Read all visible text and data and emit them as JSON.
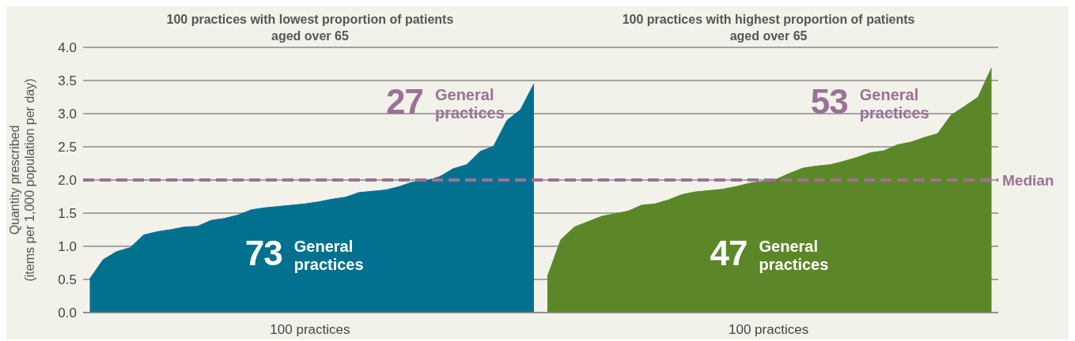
{
  "chart_data": {
    "type": "area",
    "ylabel": "Quantity prescribed (items per 1,000 population per day)",
    "categories": [
      null,
      null,
      null,
      null,
      null,
      null,
      null,
      null,
      null,
      null,
      null,
      null,
      null,
      null,
      null,
      null,
      null,
      null,
      null,
      null,
      null,
      null,
      null,
      null,
      null,
      null,
      null,
      null,
      null,
      null,
      null,
      null,
      null,
      null,
      null,
      null,
      null,
      null,
      null,
      null,
      null,
      null,
      null,
      null,
      null,
      null,
      null,
      null,
      null,
      null,
      null,
      null,
      null,
      null,
      null,
      null,
      null,
      null,
      null,
      null,
      null,
      null,
      null,
      null,
      null,
      null,
      null,
      null
    ],
    "series": [
      {
        "color": "#027190",
        "values": [
          0.51,
          0.8,
          0.92,
          0.98,
          1.17,
          1.22,
          1.25,
          1.29,
          1.3,
          1.39,
          1.42,
          1.47,
          1.55,
          1.58,
          1.6,
          1.62,
          1.64,
          1.67,
          1.71,
          1.74,
          1.81,
          1.83,
          1.85,
          1.9,
          1.97,
          1.99,
          2.05,
          2.17,
          2.23,
          2.43,
          2.51,
          2.9,
          3.06,
          3.45,
          null,
          null,
          null,
          null,
          null,
          null,
          null,
          null,
          null,
          null,
          null,
          null,
          null,
          null,
          null,
          null,
          null,
          null,
          null,
          null,
          null,
          null,
          null,
          null,
          null,
          null,
          null,
          null,
          null,
          null,
          null,
          null,
          null,
          null
        ]
      },
      {
        "color": "#5b8728",
        "values": [
          null,
          null,
          null,
          null,
          null,
          null,
          null,
          null,
          null,
          null,
          null,
          null,
          null,
          null,
          null,
          null,
          null,
          null,
          null,
          null,
          null,
          null,
          null,
          null,
          null,
          null,
          null,
          null,
          null,
          null,
          null,
          null,
          null,
          null,
          0.54,
          1.1,
          1.29,
          1.37,
          1.45,
          1.49,
          1.53,
          1.62,
          1.64,
          1.7,
          1.78,
          1.82,
          1.84,
          1.86,
          1.9,
          1.95,
          1.98,
          2.01,
          2.1,
          2.18,
          2.21,
          2.23,
          2.28,
          2.34,
          2.41,
          2.44,
          2.53,
          2.57,
          2.64,
          2.7,
          2.98,
          3.11,
          3.25,
          3.69
        ]
      }
    ],
    "ylim": [
      0,
      4
    ],
    "yticks": [
      {
        "value": 0,
        "label": "0.0"
      },
      {
        "value": 0.5,
        "label": "0.5"
      },
      {
        "value": 1,
        "label": "1.0"
      },
      {
        "value": 1.5,
        "label": "1.5"
      },
      {
        "value": 2,
        "label": "2.0"
      },
      {
        "value": 2.5,
        "label": "2.5"
      },
      {
        "value": 3,
        "label": "3.0"
      },
      {
        "value": 3.5,
        "label": "3.5"
      },
      {
        "value": 4,
        "label": "4.0"
      }
    ],
    "grid": "y",
    "tick_labels": "y",
    "ref_lines": [
      {
        "axis": "y",
        "value": 2,
        "label": "Median",
        "color": "#9b7295",
        "line_style": "dashed"
      }
    ],
    "annotations": [
      "100 practices with lowest proportion of patients aged over 65",
      "100 practices with highest proportion of patients aged over 65",
      "73",
      "General practices",
      "27",
      "General practices",
      "47",
      "General practices",
      "53",
      "General practices",
      "100 practices",
      "100 practices"
    ]
  }
}
